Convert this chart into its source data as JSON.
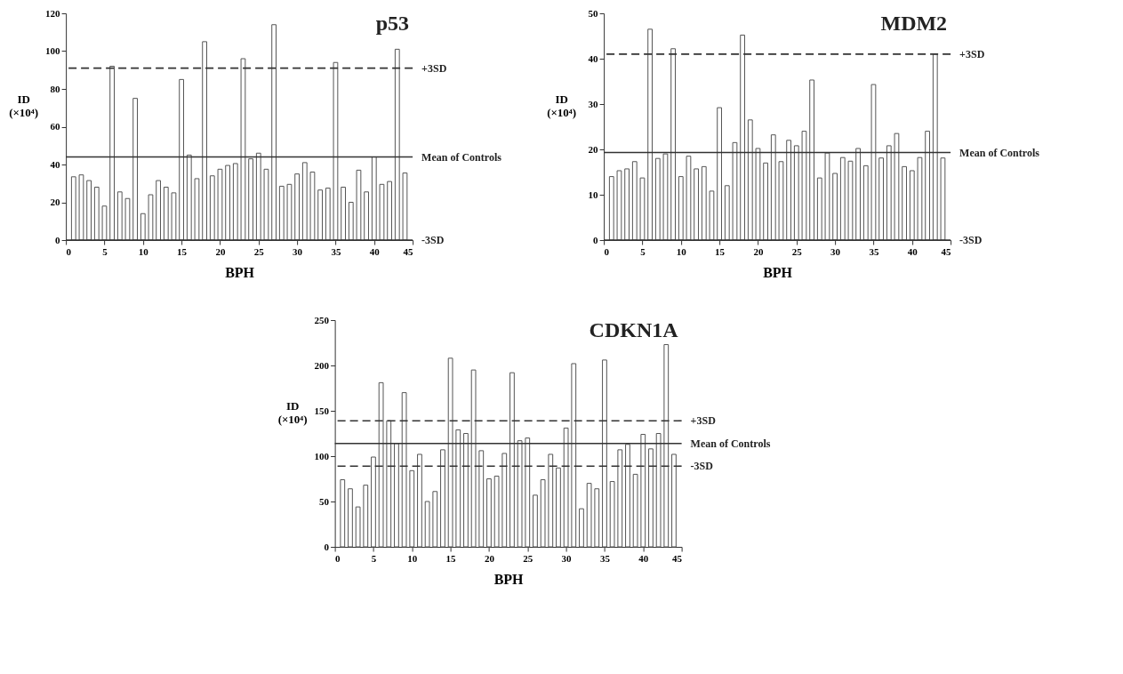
{
  "chart_data": [
    {
      "type": "bar",
      "title": "p53",
      "xlabel": "BPH",
      "ylabel": "ID (×10⁴)",
      "color": "#ffffff",
      "xlim": [
        0,
        45
      ],
      "xticks": [
        0,
        5,
        10,
        15,
        20,
        25,
        30,
        35,
        40,
        45
      ],
      "ylim": [
        0,
        120
      ],
      "yticks": [
        0,
        20,
        40,
        60,
        80,
        100,
        120
      ],
      "x": [
        1,
        2,
        3,
        4,
        5,
        6,
        7,
        8,
        9,
        10,
        11,
        12,
        13,
        14,
        15,
        16,
        17,
        18,
        19,
        20,
        21,
        22,
        23,
        24,
        25,
        26,
        27,
        28,
        29,
        30,
        31,
        32,
        33,
        34,
        35,
        36,
        37,
        38,
        39,
        40,
        41,
        42,
        43,
        44
      ],
      "values": [
        33.5,
        34.5,
        31.5,
        28,
        18,
        92,
        25.5,
        22,
        75,
        14,
        24,
        31.5,
        28,
        25,
        85,
        45,
        32.5,
        105,
        34,
        37.5,
        39.5,
        40.5,
        96,
        43,
        46,
        37.5,
        114,
        28.5,
        29.5,
        35,
        41,
        36,
        26.5,
        27.5,
        94,
        28,
        20,
        37,
        25.5,
        44,
        29.5,
        31,
        101,
        35.5
      ],
      "ref_lines": [
        {
          "axis": "y",
          "value": 91,
          "label": "+3SD",
          "line_style": "dashed"
        },
        {
          "axis": "y",
          "value": 44,
          "label": "Mean of Controls",
          "line_style": "solid"
        },
        {
          "axis": "y",
          "value": 0,
          "label": "-3SD",
          "line_style": "solid"
        }
      ]
    },
    {
      "type": "bar",
      "title": "MDM2",
      "xlabel": "BPH",
      "ylabel": "ID (×10⁴)",
      "color": "#ffffff",
      "xlim": [
        0,
        45
      ],
      "xticks": [
        0,
        5,
        10,
        15,
        20,
        25,
        30,
        35,
        40,
        45
      ],
      "ylim": [
        0,
        50
      ],
      "yticks": [
        0,
        10,
        20,
        30,
        40,
        50
      ],
      "x": [
        1,
        2,
        3,
        4,
        5,
        6,
        7,
        8,
        9,
        10,
        11,
        12,
        13,
        14,
        15,
        16,
        17,
        18,
        19,
        20,
        21,
        22,
        23,
        24,
        25,
        26,
        27,
        28,
        29,
        30,
        31,
        32,
        33,
        34,
        35,
        36,
        37,
        38,
        39,
        40,
        41,
        42,
        43,
        44
      ],
      "values": [
        14,
        15.3,
        15.7,
        17.3,
        13.7,
        46.5,
        18,
        19,
        42.2,
        14,
        18.5,
        15.7,
        16.2,
        10.8,
        29.2,
        12,
        21.5,
        45.2,
        26.5,
        20.2,
        17,
        23.2,
        17.3,
        22,
        20.8,
        24,
        35.3,
        13.7,
        19.2,
        14.7,
        18.2,
        17.4,
        20.2,
        16.4,
        34.3,
        18.1,
        20.8,
        23.5,
        16.2,
        15.3,
        18.2,
        24,
        41,
        18.1
      ],
      "ref_lines": [
        {
          "axis": "y",
          "value": 41,
          "label": "+3SD",
          "line_style": "dashed"
        },
        {
          "axis": "y",
          "value": 19.3,
          "label": "Mean of Controls",
          "line_style": "solid"
        },
        {
          "axis": "y",
          "value": 0,
          "label": "-3SD",
          "line_style": "solid"
        }
      ]
    },
    {
      "type": "bar",
      "title": "CDKN1A",
      "xlabel": "BPH",
      "ylabel": "ID (×10⁴)",
      "color": "#ffffff",
      "xlim": [
        0,
        45
      ],
      "xticks": [
        0,
        5,
        10,
        15,
        20,
        25,
        30,
        35,
        40,
        45
      ],
      "ylim": [
        0,
        250
      ],
      "yticks": [
        0,
        50,
        100,
        150,
        200,
        250
      ],
      "x": [
        1,
        2,
        3,
        4,
        5,
        6,
        7,
        8,
        9,
        10,
        11,
        12,
        13,
        14,
        15,
        16,
        17,
        18,
        19,
        20,
        21,
        22,
        23,
        24,
        25,
        26,
        27,
        28,
        29,
        30,
        31,
        32,
        33,
        34,
        35,
        36,
        37,
        38,
        39,
        40,
        41,
        42,
        43,
        44
      ],
      "values": [
        74,
        64,
        44,
        68,
        99,
        181,
        139,
        114,
        170,
        84,
        102,
        50,
        61,
        107,
        208,
        129,
        125,
        195,
        106,
        75,
        78,
        103,
        192,
        117,
        120,
        57,
        74,
        102,
        87,
        131,
        202,
        42,
        70,
        64,
        206,
        72,
        107,
        113,
        80,
        124,
        108,
        125,
        223,
        102
      ],
      "ref_lines": [
        {
          "axis": "y",
          "value": 139,
          "label": "+3SD",
          "line_style": "dashed"
        },
        {
          "axis": "y",
          "value": 114,
          "label": "Mean of Controls",
          "line_style": "solid"
        },
        {
          "axis": "y",
          "value": 89,
          "label": "-3SD",
          "line_style": "dashed"
        }
      ]
    }
  ]
}
